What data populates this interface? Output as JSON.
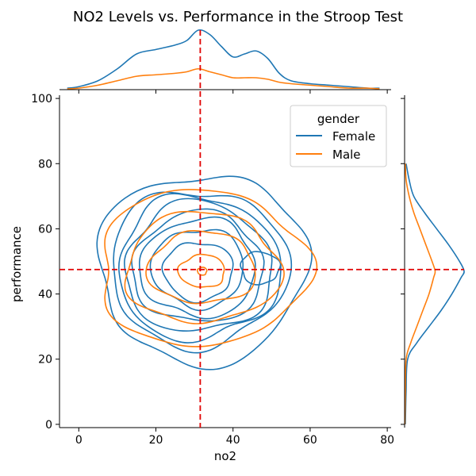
{
  "chart_data": {
    "type": "kde-joint",
    "title": "NO2 Levels vs. Performance in the Stroop Test",
    "xlabel": "no2",
    "ylabel": "performance",
    "xlim": [
      -5,
      81
    ],
    "ylim": [
      -1,
      101
    ],
    "xticks": [
      0,
      20,
      40,
      60,
      80
    ],
    "yticks": [
      0,
      20,
      40,
      60,
      80,
      100
    ],
    "grid": false,
    "reference_lines": {
      "x": 31.5,
      "y": 47.5,
      "color": "#e00000",
      "style": "dashed"
    },
    "legend": {
      "title": "gender",
      "placement": "top-right",
      "entries": [
        {
          "label": "Female",
          "color": "#1f77b4"
        },
        {
          "label": "Male",
          "color": "#ff7f0e"
        }
      ]
    },
    "series": [
      {
        "name": "Female",
        "color": "#1f77b4",
        "joint_contours": [
          {
            "cx": 32,
            "cy": 48,
            "rx": 27,
            "ry": 29
          },
          {
            "cx": 31,
            "cy": 48,
            "rx": 23,
            "ry": 24
          },
          {
            "cx": 31,
            "cy": 48,
            "rx": 21,
            "ry": 22
          },
          {
            "cx": 31,
            "cy": 48,
            "rx": 19,
            "ry": 20
          },
          {
            "cx": 31,
            "cy": 48,
            "rx": 17,
            "ry": 17
          },
          {
            "cx": 31,
            "cy": 48,
            "rx": 15,
            "ry": 15
          },
          {
            "cx": 31,
            "cy": 48,
            "rx": 12,
            "ry": 12
          },
          {
            "cx": 31,
            "cy": 47,
            "rx": 9,
            "ry": 9
          },
          {
            "cx": 47,
            "cy": 48,
            "rx": 5,
            "ry": 5
          }
        ],
        "x_marginal": {
          "x": [
            -3,
            0,
            5,
            10,
            15,
            20,
            25,
            28,
            31,
            34,
            37,
            40,
            43,
            46,
            49,
            52,
            55,
            60,
            65,
            70,
            75,
            78
          ],
          "density": [
            0.001,
            0.002,
            0.006,
            0.014,
            0.024,
            0.027,
            0.03,
            0.033,
            0.04,
            0.037,
            0.029,
            0.022,
            0.024,
            0.026,
            0.021,
            0.011,
            0.006,
            0.004,
            0.003,
            0.002,
            0.001,
            0.001
          ]
        },
        "y_marginal": {
          "y": [
            0,
            10,
            20,
            25,
            30,
            35,
            40,
            45,
            47,
            50,
            55,
            60,
            65,
            70,
            75,
            80
          ],
          "density": [
            0.0005,
            0.001,
            0.002,
            0.008,
            0.016,
            0.024,
            0.031,
            0.037,
            0.039,
            0.036,
            0.029,
            0.021,
            0.013,
            0.006,
            0.003,
            0.001
          ]
        }
      },
      {
        "name": "Male",
        "color": "#ff7f0e",
        "joint_contours": [
          {
            "cx": 32,
            "cy": 48,
            "rx": 27,
            "ry": 24
          },
          {
            "cx": 32,
            "cy": 48,
            "rx": 20,
            "ry": 17
          },
          {
            "cx": 32,
            "cy": 48,
            "rx": 14,
            "ry": 11
          },
          {
            "cx": 32,
            "cy": 47,
            "rx": 6,
            "ry": 5
          },
          {
            "cx": 32,
            "cy": 47,
            "rx": 1.2,
            "ry": 1.2
          }
        ],
        "x_marginal": {
          "x": [
            -3,
            0,
            5,
            10,
            15,
            20,
            25,
            28,
            31,
            34,
            37,
            40,
            43,
            46,
            49,
            52,
            55,
            60,
            65,
            70,
            75,
            78
          ],
          "density": [
            0.0005,
            0.001,
            0.003,
            0.006,
            0.009,
            0.01,
            0.011,
            0.012,
            0.014,
            0.012,
            0.01,
            0.008,
            0.008,
            0.008,
            0.007,
            0.005,
            0.004,
            0.003,
            0.002,
            0.001,
            0.001,
            0.0005
          ]
        },
        "y_marginal": {
          "y": [
            0,
            10,
            20,
            25,
            30,
            35,
            40,
            45,
            47,
            50,
            55,
            60,
            65,
            70,
            75,
            80
          ],
          "density": [
            0.0002,
            0.0005,
            0.001,
            0.004,
            0.008,
            0.012,
            0.016,
            0.019,
            0.02,
            0.018,
            0.014,
            0.01,
            0.006,
            0.003,
            0.001,
            0.0005
          ]
        }
      }
    ]
  }
}
